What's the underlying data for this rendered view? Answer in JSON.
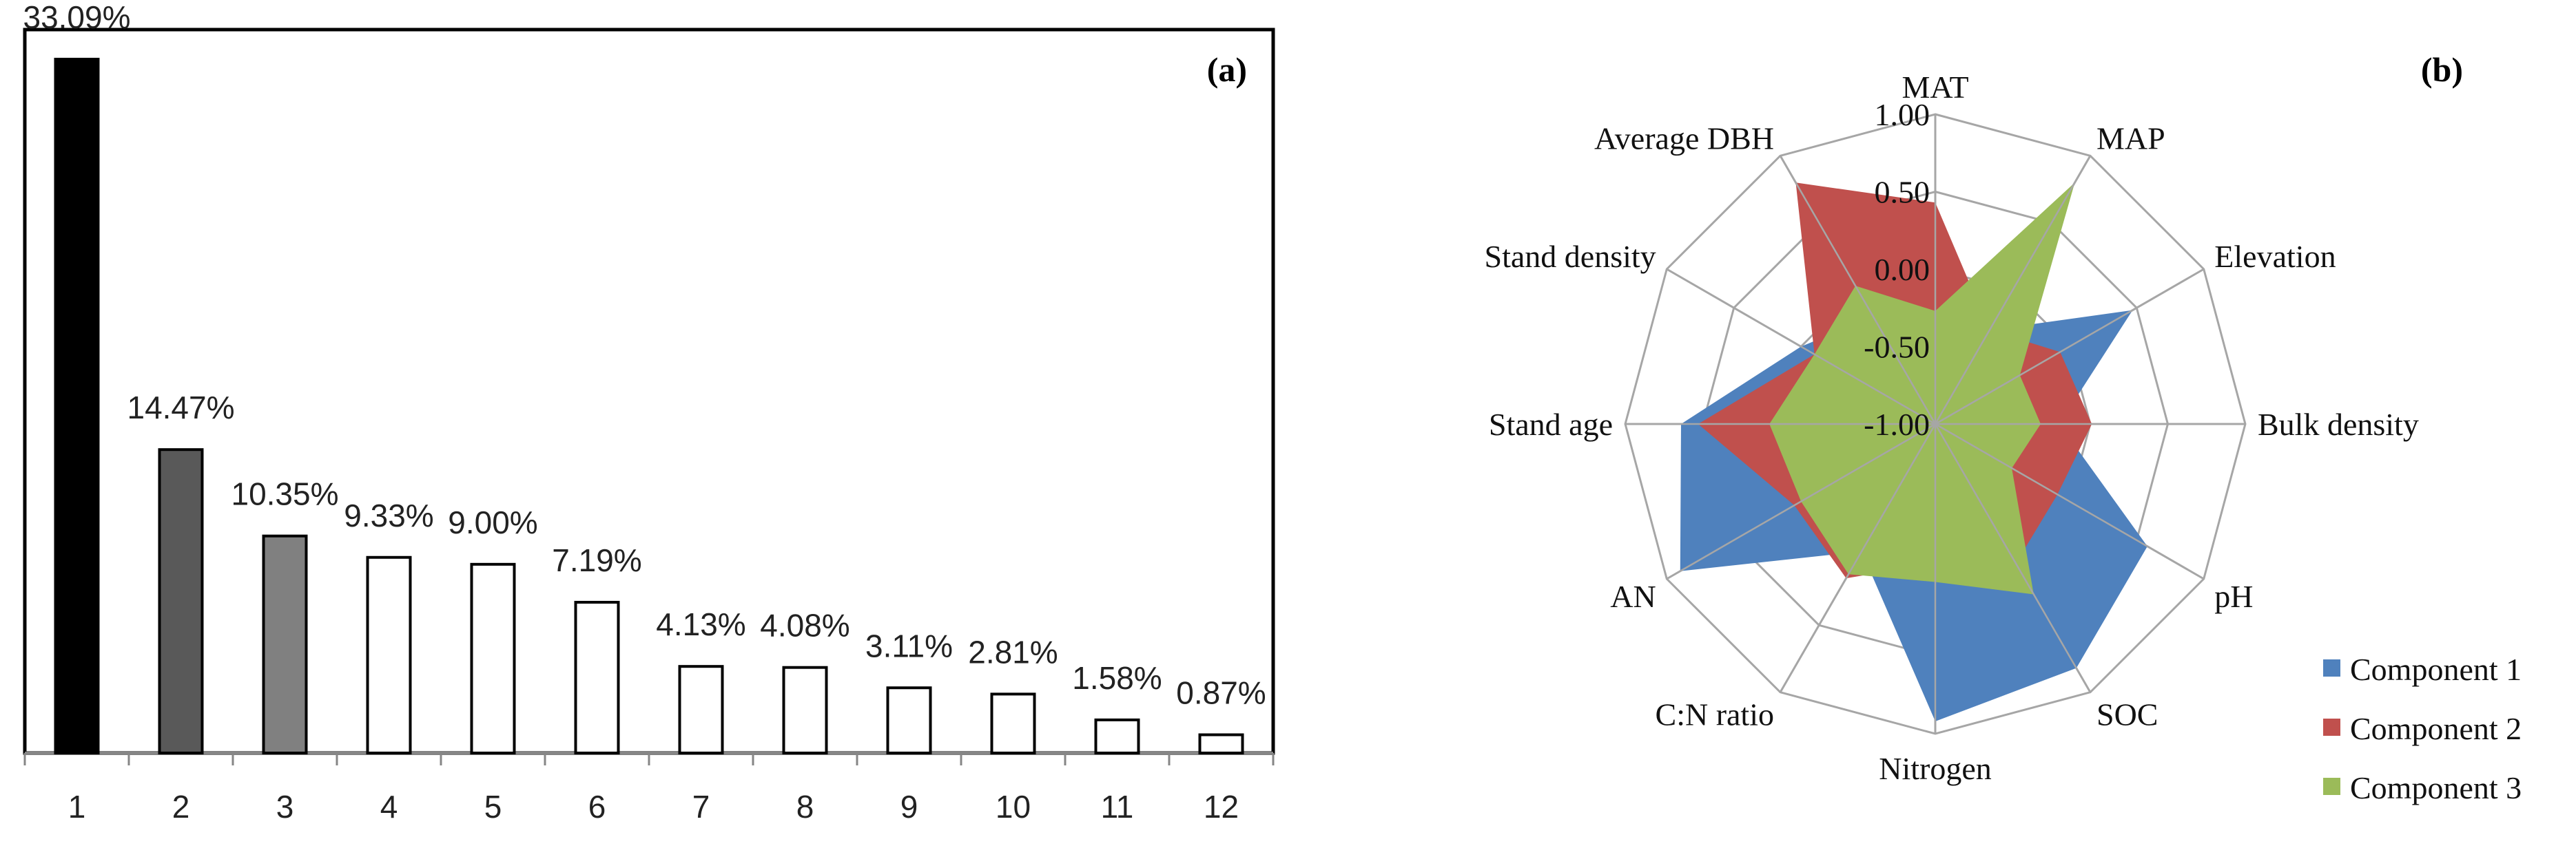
{
  "chart_data": [
    {
      "type": "bar",
      "panel_label": "(a)",
      "categories": [
        "1",
        "2",
        "3",
        "4",
        "5",
        "6",
        "7",
        "8",
        "9",
        "10",
        "11",
        "12"
      ],
      "values": [
        33.09,
        14.47,
        10.35,
        9.33,
        9.0,
        7.19,
        4.13,
        4.08,
        3.11,
        2.81,
        1.58,
        0.87
      ],
      "data_labels": [
        "33.09%",
        "14.47%",
        "10.35%",
        "9.33%",
        "9.00%",
        "7.19%",
        "4.13%",
        "4.08%",
        "3.11%",
        "2.81%",
        "1.58%",
        "0.87%"
      ],
      "bar_colors": [
        "#000000",
        "#595959",
        "#808080",
        "#ffffff",
        "#ffffff",
        "#ffffff",
        "#ffffff",
        "#ffffff",
        "#ffffff",
        "#ffffff",
        "#ffffff",
        "#ffffff"
      ],
      "xlabel": "",
      "ylabel": "",
      "ylim": [
        0,
        34.5
      ],
      "grid": false
    },
    {
      "type": "radar",
      "panel_label": "(b)",
      "axes": [
        "MAT",
        "MAP",
        "Elevation",
        "Bulk density",
        "pH",
        "SOC",
        "Nitrogen",
        "C:N ratio",
        "AN",
        "Stand age",
        "Stand density",
        "Average DBH"
      ],
      "ring_labels": [
        "1.00",
        "0.50",
        "0.00",
        "-0.50",
        "-1.00"
      ],
      "range": [
        -1,
        1
      ],
      "series": [
        {
          "name": "Component 1",
          "color": "#4F81BD",
          "values": [
            -0.5,
            -0.3,
            0.47,
            -0.2,
            0.58,
            0.82,
            0.92,
            -0.05,
            0.9,
            0.64,
            0.0,
            -0.2
          ]
        },
        {
          "name": "Component 2",
          "color": "#C0504D",
          "values": [
            0.43,
            -0.3,
            -0.07,
            0.01,
            -0.09,
            0.04,
            -0.1,
            0.15,
            0.05,
            0.53,
            -0.1,
            0.8
          ]
        },
        {
          "name": "Component 3",
          "color": "#9BBB59",
          "values": [
            -0.27,
            0.8,
            -0.37,
            -0.32,
            -0.43,
            0.27,
            0.02,
            0.12,
            0.0,
            0.07,
            -0.1,
            0.03
          ]
        }
      ],
      "legend_position": "bottom-right",
      "grid_color": "#A6A6A6"
    }
  ]
}
